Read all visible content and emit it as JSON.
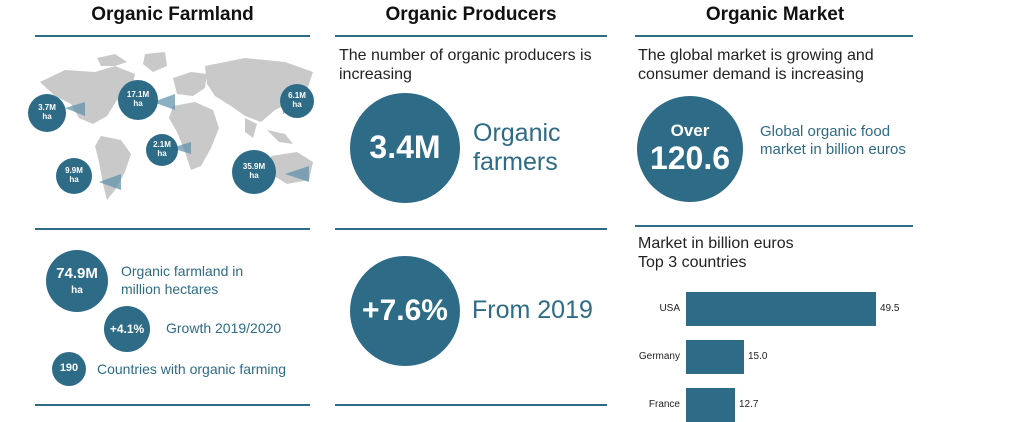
{
  "columns": {
    "farmland": {
      "title": "Organic Farmland",
      "regions": [
        {
          "value": "3.7M",
          "unit": "ha"
        },
        {
          "value": "17.1M",
          "unit": "ha"
        },
        {
          "value": "6.1M",
          "unit": "ha"
        },
        {
          "value": "2.1M",
          "unit": "ha"
        },
        {
          "value": "9.9M",
          "unit": "ha"
        },
        {
          "value": "35.9M",
          "unit": "ha"
        }
      ],
      "stats": [
        {
          "value": "74.9M",
          "sub": "ha",
          "label": "Organic farmland in million hectares"
        },
        {
          "value": "+4.1%",
          "label": "Growth 2019/2020"
        },
        {
          "value": "190",
          "label": "Countries with organic farming"
        }
      ]
    },
    "producers": {
      "title": "Organic Producers",
      "intro": "The number of organic producers is increasing",
      "stat1": {
        "value": "3.4M",
        "label_line1": "Organic",
        "label_line2": "farmers"
      },
      "stat2": {
        "value": "+7.6%",
        "label": "From 2019"
      }
    },
    "market": {
      "title": "Organic Market",
      "intro": "The global market is growing and consumer demand is increasing",
      "stat": {
        "line1": "Over",
        "line2": "120.6",
        "label": "Global organic food market in billion euros"
      },
      "chart_title_line1": "Market in billion euros",
      "chart_title_line2": "Top 3 countries"
    }
  },
  "colors": {
    "accent": "#2e6b86",
    "map": "#c9c9c9"
  },
  "chart_data": {
    "type": "bar",
    "orientation": "horizontal",
    "title": "Market in billion euros Top 3 countries",
    "categories": [
      "USA",
      "Germany",
      "France"
    ],
    "values": [
      49.5,
      15.0,
      12.7
    ],
    "value_labels": [
      "49.5",
      "15.0",
      "12.7"
    ],
    "xlim": [
      0,
      49.5
    ]
  }
}
